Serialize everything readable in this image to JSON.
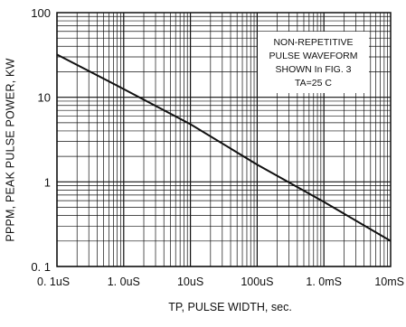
{
  "chart_data": {
    "type": "line",
    "title": "",
    "xlabel": "TP, PULSE  WIDTH, sec.",
    "ylabel": "PPPM, PEAK PULSE POWER, KW",
    "x_scale": "log",
    "y_scale": "log",
    "xlim_seconds": [
      1e-07,
      0.01
    ],
    "ylim_kw": [
      0.1,
      100
    ],
    "x_ticks": [
      {
        "value": 1e-07,
        "label": "0. 1uS"
      },
      {
        "value": 1e-06,
        "label": "1. 0uS"
      },
      {
        "value": 1e-05,
        "label": "10uS"
      },
      {
        "value": 0.0001,
        "label": "100uS"
      },
      {
        "value": 0.001,
        "label": "1. 0mS"
      },
      {
        "value": 0.01,
        "label": "10mS"
      }
    ],
    "y_ticks": [
      {
        "value": 0.1,
        "label": "0. 1"
      },
      {
        "value": 1,
        "label": "1"
      },
      {
        "value": 10,
        "label": "10"
      },
      {
        "value": 100,
        "label": "100"
      }
    ],
    "grid": true,
    "series": [
      {
        "color": "#111111",
        "x": [
          1e-07,
          1e-06,
          1e-05,
          0.0001,
          0.001,
          0.01
        ],
        "y": [
          32,
          12.5,
          4.8,
          1.6,
          0.58,
          0.2
        ]
      }
    ],
    "annotation": {
      "placement": "top-right",
      "lines": [
        "NON-REPETITIVE",
        "PULSE WAVEFORM",
        "SHOWN In FIG. 3",
        "TA=25 C"
      ]
    }
  }
}
